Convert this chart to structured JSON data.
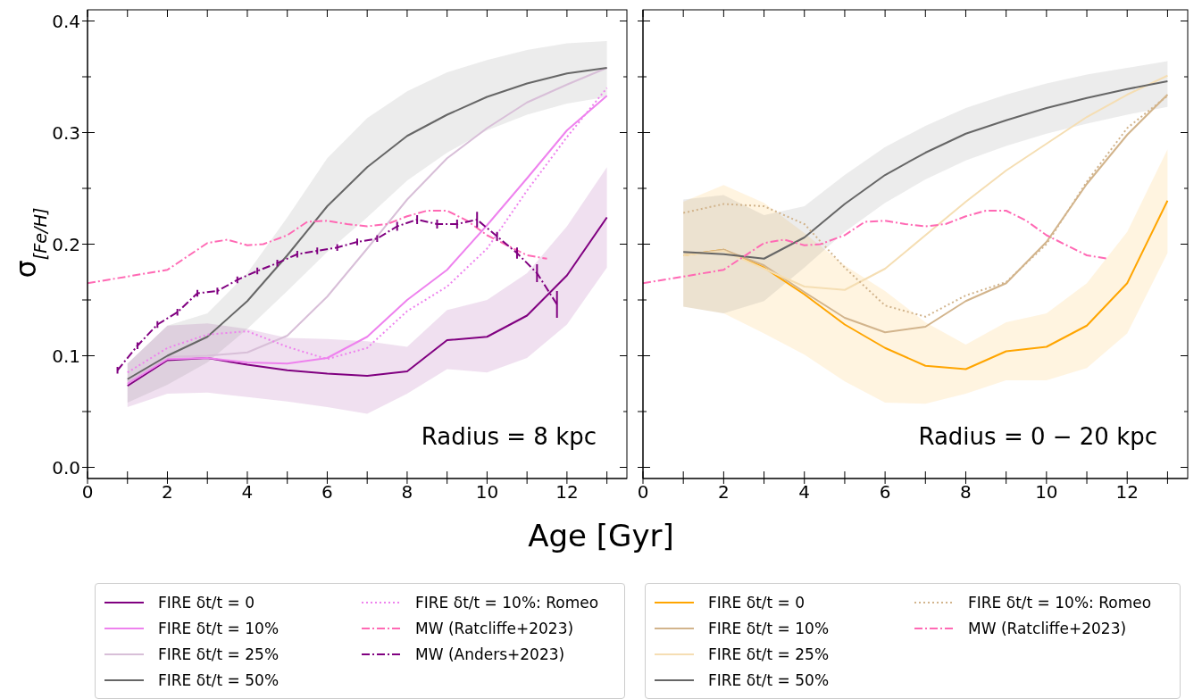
{
  "chart_data": [
    {
      "type": "line",
      "ylabel": "σ$_{[Fe/H]}$",
      "xlabel": "Age [Gyr]",
      "xlim": [
        0,
        13.5
      ],
      "ylim": [
        -0.01,
        0.41
      ],
      "xticks": [
        0,
        {
          "value": 1,
          "label": null
        },
        2,
        {
          "value": 3,
          "label": null
        },
        4,
        {
          "value": 5,
          "label": null
        },
        6,
        {
          "value": 7,
          "label": null
        },
        8,
        {
          "value": 9,
          "label": null
        },
        10,
        {
          "value": 11,
          "label": null
        },
        12,
        {
          "value": 13,
          "label": null
        }
      ],
      "yticks": [
        {
          "value": 0,
          "label": "0.0"
        },
        {
          "value": 0.05,
          "label": null
        },
        0.1,
        {
          "value": 0.15,
          "label": null
        },
        0.2,
        {
          "value": 0.25,
          "label": null
        },
        0.3,
        {
          "value": 0.35,
          "label": null
        },
        0.4
      ],
      "x": [
        1,
        2,
        3,
        4,
        5,
        6,
        7,
        8,
        9,
        10,
        11,
        12,
        13
      ],
      "legend": "bottom",
      "grid": false,
      "marker": "none",
      "annotations": [
        "Radius = 8 kpc"
      ],
      "series": [
        {
          "name": "FIRE δt/t = 0",
          "color": "#800080",
          "line_style": "solid",
          "values": [
            0.073,
            0.096,
            0.098,
            0.092,
            0.087,
            0.084,
            0.082,
            0.086,
            0.114,
            0.117,
            0.136,
            0.172,
            0.224
          ],
          "lower": [
            0.054,
            0.066,
            0.067,
            0.063,
            0.059,
            0.054,
            0.048,
            0.066,
            0.088,
            0.085,
            0.098,
            0.128,
            0.179
          ],
          "upper": [
            0.093,
            0.127,
            0.129,
            0.124,
            0.116,
            0.115,
            0.113,
            0.108,
            0.141,
            0.15,
            0.174,
            0.216,
            0.269
          ]
        },
        {
          "name": "FIRE δt/t = 10%",
          "color": "#ee82ee",
          "line_style": "solid",
          "values": [
            0.075,
            0.097,
            0.098,
            0.094,
            0.093,
            0.098,
            0.117,
            0.15,
            0.177,
            0.217,
            0.259,
            0.302,
            0.333
          ]
        },
        {
          "name": "FIRE δt/t = 25%",
          "color": "#d8bfd8",
          "line_style": "solid",
          "values": [
            0.077,
            0.099,
            0.1,
            0.103,
            0.118,
            0.153,
            0.196,
            0.24,
            0.277,
            0.304,
            0.327,
            0.343,
            0.358
          ]
        },
        {
          "name": "FIRE δt/t = 50%",
          "color": "#666666",
          "line_style": "solid",
          "values": [
            0.079,
            0.1,
            0.117,
            0.149,
            0.19,
            0.234,
            0.269,
            0.297,
            0.316,
            0.332,
            0.344,
            0.353,
            0.358
          ],
          "lower": [
            0.058,
            0.074,
            0.094,
            0.124,
            0.158,
            0.193,
            0.224,
            0.257,
            0.282,
            0.302,
            0.316,
            0.326,
            0.332
          ],
          "upper": [
            0.093,
            0.127,
            0.138,
            0.174,
            0.224,
            0.277,
            0.313,
            0.337,
            0.354,
            0.365,
            0.374,
            0.38,
            0.382
          ]
        },
        {
          "name": "FIRE δt/t = 10%: Romeo",
          "color": "#ee82ee",
          "line_style": "dotted",
          "values": [
            0.085,
            0.107,
            0.119,
            0.122,
            0.108,
            0.097,
            0.107,
            0.14,
            0.162,
            0.196,
            0.248,
            0.296,
            0.34
          ]
        },
        {
          "name": "MW (Ratcliffe+2023)",
          "color": "#ff69b4",
          "line_style": "dashdot",
          "x": [
            0,
            2,
            3,
            3.5,
            4,
            4.4,
            5,
            5.5,
            6,
            6.5,
            7,
            7.5,
            8,
            8.5,
            9,
            9.5,
            10,
            10.5,
            11,
            11.5
          ],
          "values": [
            0.165,
            0.177,
            0.201,
            0.204,
            0.199,
            0.2,
            0.208,
            0.22,
            0.221,
            0.218,
            0.216,
            0.218,
            0.225,
            0.23,
            0.23,
            0.221,
            0.208,
            0.199,
            0.19,
            0.187
          ]
        },
        {
          "name": "MW (Anders+2023)",
          "color": "#800080",
          "line_style": "dashdot",
          "x": [
            0.75,
            1.25,
            1.75,
            2.25,
            2.75,
            3.25,
            3.75,
            4.25,
            4.75,
            5.25,
            5.75,
            6.25,
            6.75,
            7.25,
            7.75,
            8.25,
            8.75,
            9.25,
            9.75,
            10.25,
            10.75,
            11.25,
            11.75
          ],
          "values": [
            0.087,
            0.109,
            0.128,
            0.139,
            0.156,
            0.158,
            0.168,
            0.176,
            0.183,
            0.191,
            0.194,
            0.197,
            0.202,
            0.205,
            0.216,
            0.222,
            0.218,
            0.218,
            0.222,
            0.207,
            0.192,
            0.174,
            0.146
          ],
          "errors": [
            0.003,
            0.003,
            0.003,
            0.003,
            0.003,
            0.003,
            0.003,
            0.003,
            0.003,
            0.003,
            0.003,
            0.003,
            0.003,
            0.003,
            0.004,
            0.004,
            0.004,
            0.004,
            0.007,
            0.004,
            0.005,
            0.008,
            0.012
          ]
        }
      ]
    },
    {
      "type": "line",
      "xlim": [
        0,
        13.5
      ],
      "ylim": [
        -0.01,
        0.41
      ],
      "tick_labels": "x",
      "xticks": [
        0,
        {
          "value": 1,
          "label": null
        },
        2,
        {
          "value": 3,
          "label": null
        },
        4,
        {
          "value": 5,
          "label": null
        },
        6,
        {
          "value": 7,
          "label": null
        },
        8,
        {
          "value": 9,
          "label": null
        },
        10,
        {
          "value": 11,
          "label": null
        },
        12,
        {
          "value": 13,
          "label": null
        }
      ],
      "x": [
        1,
        2,
        3,
        4,
        5,
        6,
        7,
        8,
        9,
        10,
        11,
        12,
        13
      ],
      "legend": "bottom",
      "grid": false,
      "marker": "none",
      "annotations": [
        "Radius = 0 − 20 kpc"
      ],
      "yticks": [
        0,
        {
          "value": 0.05,
          "label": null
        },
        0.1,
        {
          "value": 0.15,
          "label": null
        },
        0.2,
        {
          "value": 0.25,
          "label": null
        },
        0.3,
        {
          "value": 0.35,
          "label": null
        },
        0.4
      ],
      "series": [
        {
          "name": "FIRE δt/t = 0",
          "color": "#ffa500",
          "line_style": "solid",
          "values": [
            0.19,
            0.195,
            0.179,
            0.155,
            0.128,
            0.107,
            0.091,
            0.088,
            0.104,
            0.108,
            0.127,
            0.165,
            0.239
          ],
          "lower": [
            0.144,
            0.138,
            0.12,
            0.101,
            0.077,
            0.058,
            0.057,
            0.066,
            0.078,
            0.078,
            0.089,
            0.12,
            0.192
          ],
          "upper": [
            0.238,
            0.253,
            0.237,
            0.21,
            0.181,
            0.158,
            0.13,
            0.11,
            0.13,
            0.138,
            0.165,
            0.211,
            0.285
          ]
        },
        {
          "name": "FIRE δt/t = 10%",
          "color": "#d2b48c",
          "line_style": "solid",
          "values": [
            0.19,
            0.195,
            0.181,
            0.157,
            0.134,
            0.121,
            0.126,
            0.149,
            0.165,
            0.202,
            0.254,
            0.298,
            0.334
          ]
        },
        {
          "name": "FIRE δt/t = 25%",
          "color": "#f5deb3",
          "line_style": "solid",
          "values": [
            0.19,
            0.194,
            0.178,
            0.162,
            0.159,
            0.178,
            0.208,
            0.238,
            0.266,
            0.29,
            0.314,
            0.334,
            0.351
          ]
        },
        {
          "name": "FIRE δt/t = 50%",
          "color": "#666666",
          "line_style": "solid",
          "values": [
            0.193,
            0.191,
            0.187,
            0.206,
            0.236,
            0.262,
            0.282,
            0.299,
            0.311,
            0.322,
            0.331,
            0.339,
            0.346
          ],
          "lower": [
            0.144,
            0.138,
            0.149,
            0.179,
            0.211,
            0.237,
            0.258,
            0.275,
            0.288,
            0.299,
            0.308,
            0.316,
            0.323
          ],
          "upper": [
            0.24,
            0.244,
            0.226,
            0.234,
            0.262,
            0.287,
            0.306,
            0.322,
            0.334,
            0.344,
            0.352,
            0.358,
            0.364
          ]
        },
        {
          "name": "FIRE δt/t = 10%: Romeo",
          "color": "#d2b48c",
          "line_style": "dotted",
          "values": [
            0.228,
            0.236,
            0.234,
            0.218,
            0.179,
            0.145,
            0.135,
            0.154,
            0.166,
            0.2,
            0.256,
            0.304,
            0.333
          ]
        },
        {
          "name": "MW (Ratcliffe+2023)",
          "color": "#ff69b4",
          "line_style": "dashdot",
          "x": [
            0,
            2,
            3,
            3.5,
            4,
            4.4,
            5,
            5.5,
            6,
            6.5,
            7,
            7.5,
            8,
            8.5,
            9,
            9.5,
            10,
            10.5,
            11,
            11.5
          ],
          "values": [
            0.165,
            0.177,
            0.201,
            0.204,
            0.199,
            0.2,
            0.208,
            0.22,
            0.221,
            0.218,
            0.216,
            0.218,
            0.225,
            0.23,
            0.23,
            0.221,
            0.208,
            0.199,
            0.19,
            0.187
          ]
        }
      ]
    }
  ]
}
